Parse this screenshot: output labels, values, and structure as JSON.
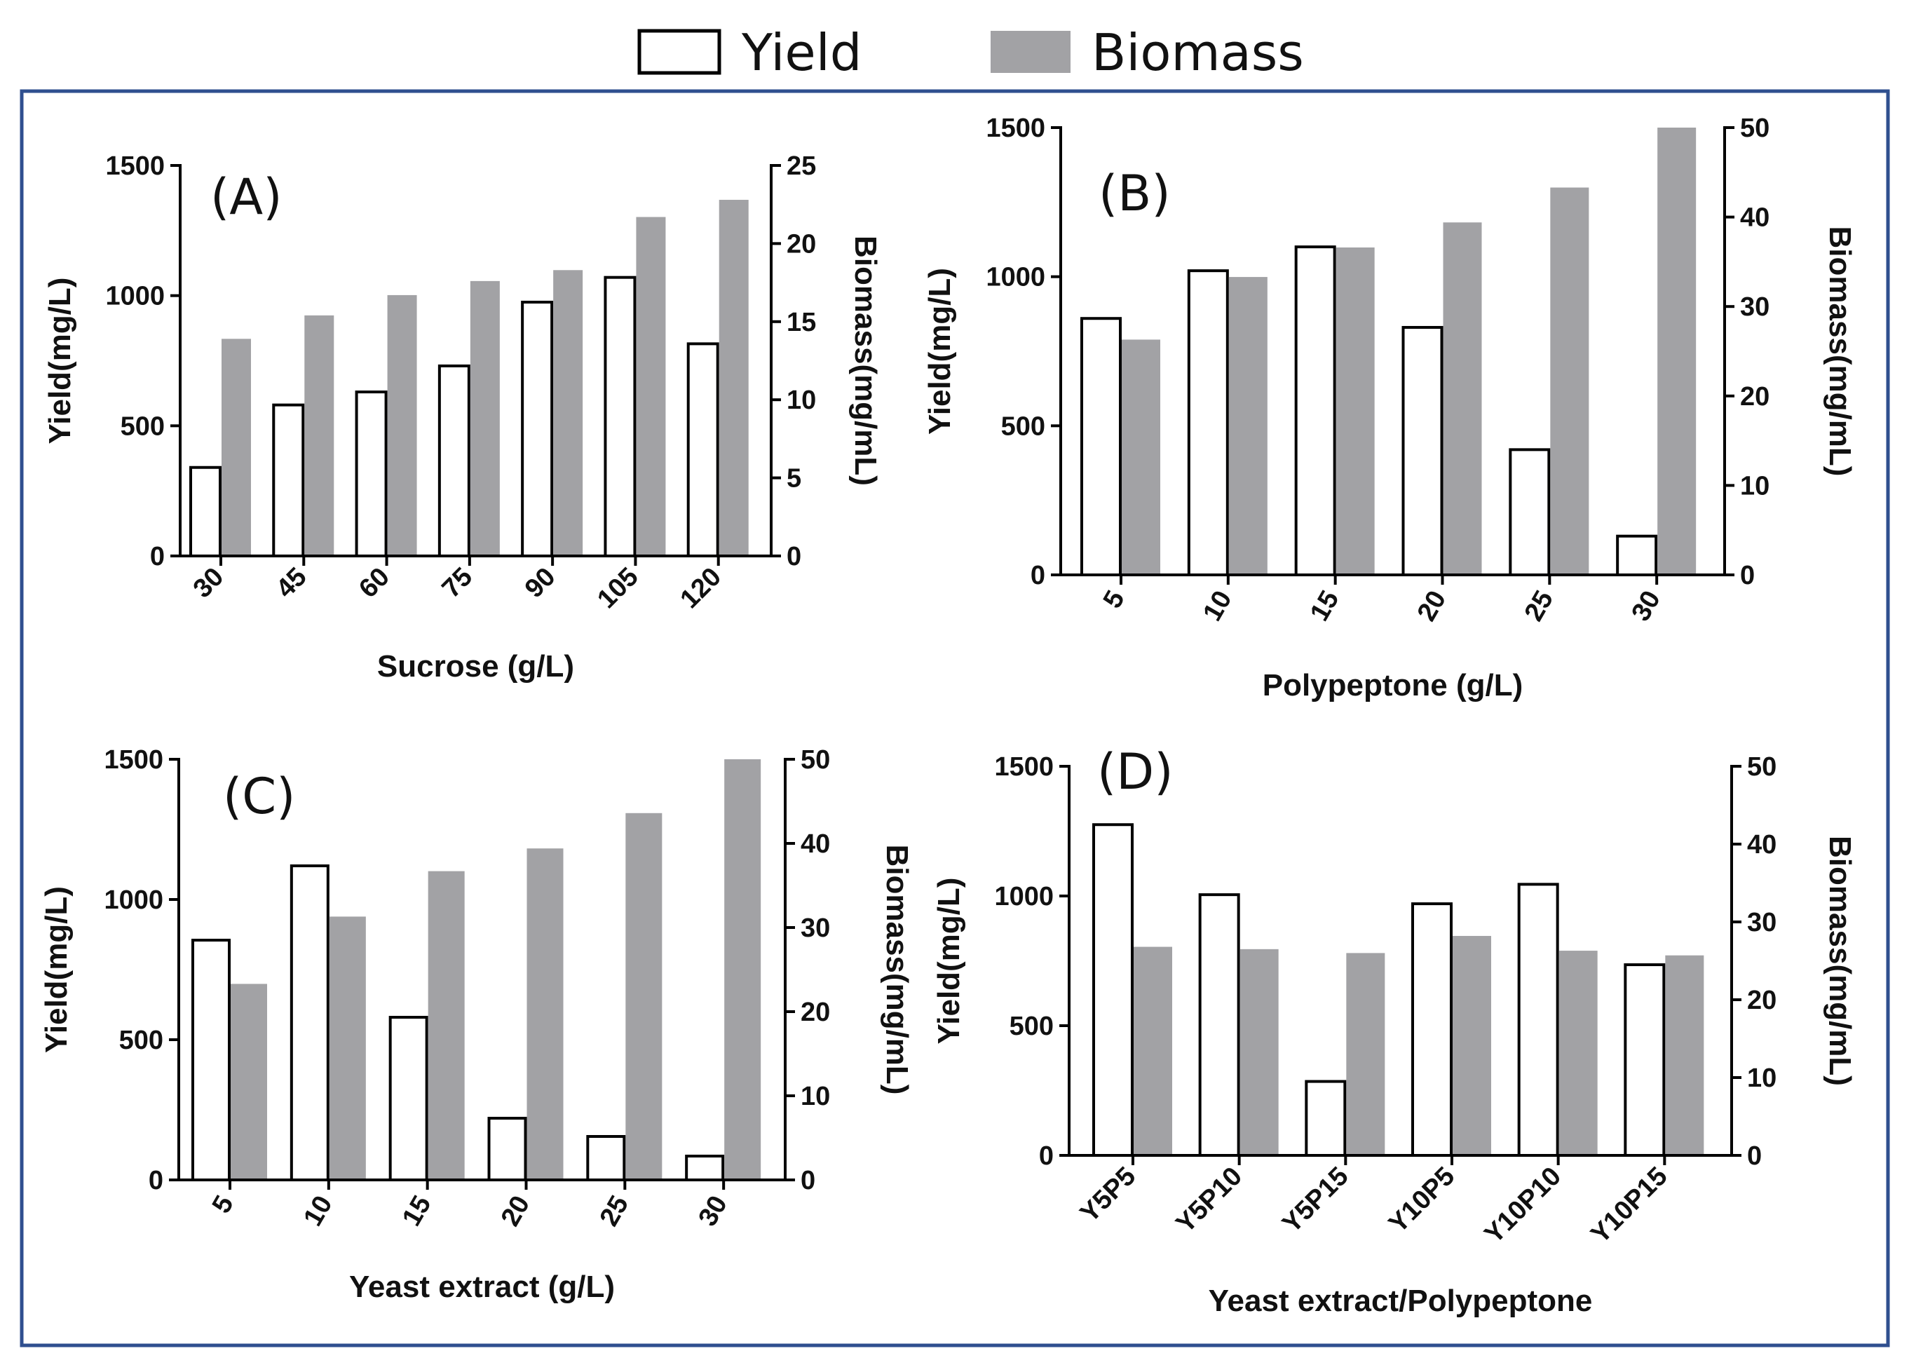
{
  "legend": {
    "yield_label": "Yield",
    "biomass_label": "Biomass",
    "yield_color": "#ffffff",
    "biomass_color": "#a2a2a5"
  },
  "frame_color": "#2f4f8f",
  "chart_data": [
    {
      "type": "bar",
      "panel": "(A)",
      "title": "(A)",
      "xlabel": "Sucrose (g/L)",
      "ylabel": "Yield(mg/L)",
      "y2label": "Biomass(mg/mL)",
      "categories": [
        "30",
        "45",
        "60",
        "75",
        "90",
        "105",
        "120"
      ],
      "ylim": [
        0,
        1500
      ],
      "y2lim": [
        0,
        25
      ],
      "yticks": [
        0,
        500,
        1000,
        1500
      ],
      "y2ticks": [
        0,
        5,
        10,
        15,
        20,
        25
      ],
      "series": [
        {
          "name": "Yield",
          "axis": "left",
          "values": [
            340,
            580,
            630,
            730,
            975,
            1070,
            815
          ]
        },
        {
          "name": "Biomass",
          "axis": "right",
          "values": [
            13.9,
            15.4,
            16.7,
            17.6,
            18.3,
            21.7,
            22.8
          ]
        }
      ]
    },
    {
      "type": "bar",
      "panel": "(B)",
      "title": "(B)",
      "xlabel": "Polypeptone (g/L)",
      "ylabel": "Yield(mg/L)",
      "y2label": "Biomass(mg/mL)",
      "categories": [
        "5",
        "10",
        "15",
        "20",
        "25",
        "30"
      ],
      "ylim": [
        0,
        1500
      ],
      "y2lim": [
        0,
        50
      ],
      "yticks": [
        0,
        500,
        1000,
        1500
      ],
      "y2ticks": [
        0,
        10,
        20,
        30,
        40,
        50
      ],
      "series": [
        {
          "name": "Yield",
          "axis": "left",
          "values": [
            860,
            1020,
            1100,
            830,
            420,
            130
          ]
        },
        {
          "name": "Biomass",
          "axis": "right",
          "values": [
            26.3,
            33.3,
            36.6,
            39.4,
            43.3,
            50.0
          ]
        }
      ]
    },
    {
      "type": "bar",
      "panel": "(C)",
      "title": "(C)",
      "xlabel": "Yeast extract  (g/L)",
      "ylabel": "Yield(mg/L)",
      "y2label": "Biomass(mg/mL)",
      "categories": [
        "5",
        "10",
        "15",
        "20",
        "25",
        "30"
      ],
      "ylim": [
        0,
        1500
      ],
      "y2lim": [
        0,
        50
      ],
      "yticks": [
        0,
        500,
        1000,
        1500
      ],
      "y2ticks": [
        0,
        10,
        20,
        30,
        40,
        50
      ],
      "series": [
        {
          "name": "Yield",
          "axis": "left",
          "values": [
            855,
            1120,
            580,
            220,
            155,
            85
          ]
        },
        {
          "name": "Biomass",
          "axis": "right",
          "values": [
            23.3,
            31.3,
            36.7,
            39.4,
            43.6,
            50.0
          ]
        }
      ]
    },
    {
      "type": "bar",
      "panel": "(D)",
      "title": "(D)",
      "xlabel": "Yeast extract/Polypeptone",
      "ylabel": "Yield(mg/L)",
      "y2label": "Biomass(mg/mL)",
      "categories": [
        "Y5P5",
        "Y5P10",
        "Y5P15",
        "Y10P5",
        "Y10P10",
        "Y10P15"
      ],
      "ylim": [
        0,
        1500
      ],
      "y2lim": [
        0,
        50
      ],
      "yticks": [
        0,
        500,
        1000,
        1500
      ],
      "y2ticks": [
        0,
        10,
        20,
        30,
        40,
        50
      ],
      "series": [
        {
          "name": "Yield",
          "axis": "left",
          "values": [
            1275,
            1005,
            285,
            970,
            1045,
            735
          ]
        },
        {
          "name": "Biomass",
          "axis": "right",
          "values": [
            26.8,
            26.5,
            26.0,
            28.2,
            26.3,
            25.7
          ]
        }
      ]
    }
  ]
}
